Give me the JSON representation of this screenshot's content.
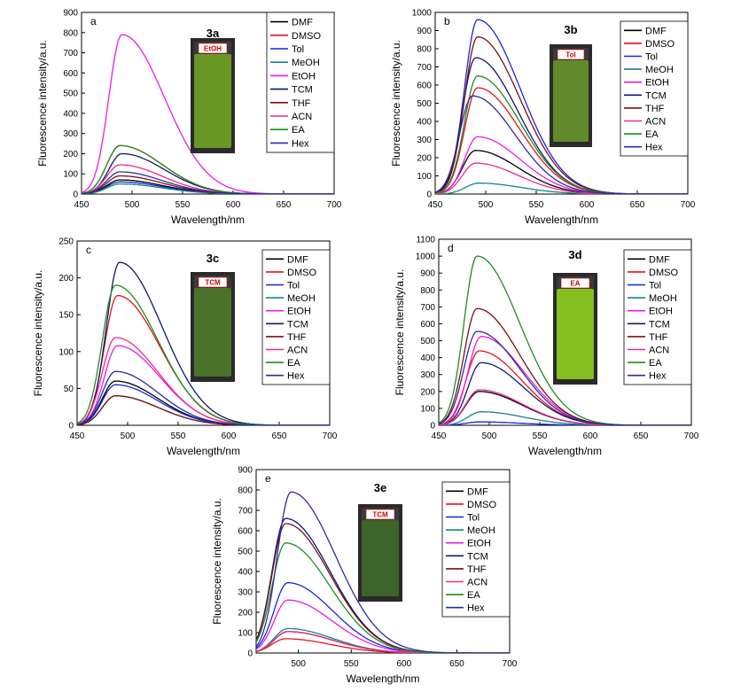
{
  "legend_names": [
    "DMF",
    "DMSO",
    "Tol",
    "MeOH",
    "EtOH",
    "TCM",
    "THF",
    "ACN",
    "EA",
    "Hex"
  ],
  "legend_colors": [
    "#000000",
    "#e8131b",
    "#1327e0",
    "#17858a",
    "#ef18e6",
    "#0d1772",
    "#7a1013",
    "#ed2a8e",
    "#1e8e1e",
    "#2b2ba8"
  ],
  "xlabel": "Wavelength/nm",
  "ylabel": "Fluorescence intensity/a.u.",
  "chart_data": [
    {
      "type": "line",
      "panel_letter": "a",
      "compound": "3a",
      "vial_label": "EtOH",
      "vial_color": "#6fa326",
      "xlabel": "Wavelength/nm",
      "ylabel": "Fluorescence intensity/a.u.",
      "xlim": [
        450,
        700
      ],
      "ylim": [
        0,
        900
      ],
      "xticks": [
        450,
        500,
        550,
        600,
        650,
        700
      ],
      "yticks": [
        0,
        100,
        200,
        300,
        400,
        500,
        600,
        700,
        800,
        900
      ],
      "legend_location": "top-right",
      "series": [
        {
          "name": "DMF",
          "peak_x": 488,
          "peak_y": 70
        },
        {
          "name": "DMSO",
          "peak_x": 488,
          "peak_y": 240
        },
        {
          "name": "Tol",
          "peak_x": 488,
          "peak_y": 60
        },
        {
          "name": "MeOH",
          "peak_x": 488,
          "peak_y": 50
        },
        {
          "name": "EtOH",
          "peak_x": 490,
          "peak_y": 790
        },
        {
          "name": "TCM",
          "peak_x": 490,
          "peak_y": 200
        },
        {
          "name": "THF",
          "peak_x": 488,
          "peak_y": 90
        },
        {
          "name": "ACN",
          "peak_x": 488,
          "peak_y": 145
        },
        {
          "name": "EA",
          "peak_x": 488,
          "peak_y": 240
        },
        {
          "name": "Hex",
          "peak_x": 488,
          "peak_y": 110
        }
      ]
    },
    {
      "type": "line",
      "panel_letter": "b",
      "compound": "3b",
      "vial_label": "Tol",
      "vial_color": "#67952a",
      "xlabel": "Wavelength/nm",
      "ylabel": "Fluorescence intensity/a.u.",
      "xlim": [
        450,
        700
      ],
      "ylim": [
        0,
        1000
      ],
      "xticks": [
        450,
        500,
        550,
        600,
        650,
        700
      ],
      "yticks": [
        0,
        100,
        200,
        300,
        400,
        500,
        600,
        700,
        800,
        900,
        1000
      ],
      "legend_location": "top-right",
      "series": [
        {
          "name": "DMF",
          "peak_x": 490,
          "peak_y": 240
        },
        {
          "name": "DMSO",
          "peak_x": 492,
          "peak_y": 585
        },
        {
          "name": "Tol",
          "peak_x": 492,
          "peak_y": 960
        },
        {
          "name": "MeOH",
          "peak_x": 493,
          "peak_y": 60
        },
        {
          "name": "EtOH",
          "peak_x": 492,
          "peak_y": 315
        },
        {
          "name": "TCM",
          "peak_x": 490,
          "peak_y": 750
        },
        {
          "name": "THF",
          "peak_x": 492,
          "peak_y": 865
        },
        {
          "name": "ACN",
          "peak_x": 490,
          "peak_y": 170
        },
        {
          "name": "EA",
          "peak_x": 492,
          "peak_y": 650
        },
        {
          "name": "Hex",
          "peak_x": 487,
          "peak_y": 540
        }
      ]
    },
    {
      "type": "line",
      "panel_letter": "c",
      "compound": "3c",
      "vial_label": "TCM",
      "vial_color": "#4f7a2a",
      "xlabel": "Wavelength/nm",
      "ylabel": "Fluorescence intensity/a.u.",
      "xlim": [
        450,
        700
      ],
      "ylim": [
        0,
        250
      ],
      "xticks": [
        450,
        500,
        550,
        600,
        650,
        700
      ],
      "yticks": [
        0,
        50,
        100,
        150,
        200,
        250
      ],
      "legend_location": "top-right",
      "series": [
        {
          "name": "DMF",
          "peak_x": 488,
          "peak_y": 60
        },
        {
          "name": "DMSO",
          "peak_x": 490,
          "peak_y": 176
        },
        {
          "name": "Tol",
          "peak_x": 488,
          "peak_y": 55
        },
        {
          "name": "MeOH",
          "peak_x": 488,
          "peak_y": 40
        },
        {
          "name": "EtOH",
          "peak_x": 490,
          "peak_y": 108
        },
        {
          "name": "TCM",
          "peak_x": 492,
          "peak_y": 221
        },
        {
          "name": "THF",
          "peak_x": 488,
          "peak_y": 40
        },
        {
          "name": "ACN",
          "peak_x": 488,
          "peak_y": 119
        },
        {
          "name": "EA",
          "peak_x": 488,
          "peak_y": 190
        },
        {
          "name": "Hex",
          "peak_x": 488,
          "peak_y": 73
        }
      ]
    },
    {
      "type": "line",
      "panel_letter": "d",
      "compound": "3d",
      "vial_label": "EA",
      "vial_color": "#8fcf1e",
      "xlabel": "Wavelength/nm",
      "ylabel": "Fluorescence intensity/a.u.",
      "xlim": [
        450,
        700
      ],
      "ylim": [
        0,
        1100
      ],
      "xticks": [
        450,
        500,
        550,
        600,
        650,
        700
      ],
      "yticks": [
        0,
        100,
        200,
        300,
        400,
        500,
        600,
        700,
        800,
        900,
        1000,
        1100
      ],
      "legend_location": "top-right",
      "series": [
        {
          "name": "DMF",
          "peak_x": 490,
          "peak_y": 200
        },
        {
          "name": "DMSO",
          "peak_x": 490,
          "peak_y": 440
        },
        {
          "name": "Tol",
          "peak_x": 490,
          "peak_y": 20
        },
        {
          "name": "MeOH",
          "peak_x": 492,
          "peak_y": 80
        },
        {
          "name": "EtOH",
          "peak_x": 492,
          "peak_y": 525
        },
        {
          "name": "TCM",
          "peak_x": 492,
          "peak_y": 370
        },
        {
          "name": "THF",
          "peak_x": 488,
          "peak_y": 690
        },
        {
          "name": "ACN",
          "peak_x": 490,
          "peak_y": 210
        },
        {
          "name": "EA",
          "peak_x": 488,
          "peak_y": 1000
        },
        {
          "name": "Hex",
          "peak_x": 488,
          "peak_y": 555
        }
      ]
    },
    {
      "type": "line",
      "panel_letter": "e",
      "compound": "3e",
      "vial_label": "TCM",
      "vial_color": "#3f6a2a",
      "xlabel": "Wavelength/nm",
      "ylabel": "Fluorescence intensity/a.u.",
      "xlim": [
        460,
        700
      ],
      "ylim": [
        0,
        900
      ],
      "xticks": [
        500,
        550,
        600,
        650,
        700
      ],
      "yticks": [
        0,
        100,
        200,
        300,
        400,
        500,
        600,
        700,
        800,
        900
      ],
      "legend_location": "top-right",
      "series": [
        {
          "name": "DMF",
          "peak_x": 490,
          "peak_y": 105
        },
        {
          "name": "DMSO",
          "peak_x": 488,
          "peak_y": 70
        },
        {
          "name": "Tol",
          "peak_x": 490,
          "peak_y": 345
        },
        {
          "name": "MeOH",
          "peak_x": 490,
          "peak_y": 120
        },
        {
          "name": "EtOH",
          "peak_x": 490,
          "peak_y": 260
        },
        {
          "name": "TCM",
          "peak_x": 488,
          "peak_y": 660
        },
        {
          "name": "THF",
          "peak_x": 488,
          "peak_y": 635
        },
        {
          "name": "ACN",
          "peak_x": 490,
          "peak_y": 105
        },
        {
          "name": "EA",
          "peak_x": 488,
          "peak_y": 540
        },
        {
          "name": "Hex",
          "peak_x": 493,
          "peak_y": 790
        }
      ]
    }
  ]
}
